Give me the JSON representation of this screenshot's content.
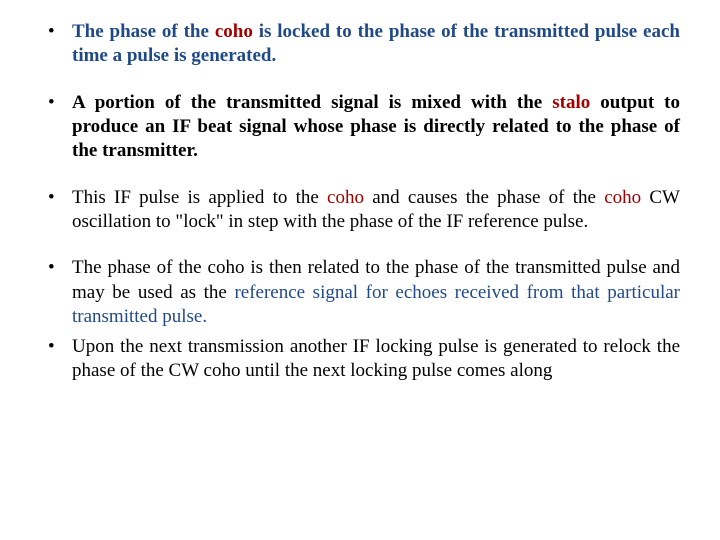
{
  "colors": {
    "blue": "#204a87",
    "red": "#a40000",
    "black": "#000000",
    "background": "#ffffff"
  },
  "typography": {
    "font_family": "Times New Roman",
    "body_fontsize_pt": 14,
    "line_height": 1.28,
    "align": "justify"
  },
  "bullets": [
    {
      "runs": [
        {
          "text": "The phase of the ",
          "color": "blue",
          "bold": true
        },
        {
          "text": "coho",
          "color": "red",
          "bold": true
        },
        {
          "text": " is locked to the phase of the transmitted pulse each time a pulse is generated.",
          "color": "blue",
          "bold": true
        }
      ]
    },
    {
      "runs": [
        {
          "text": "A  portion of the transmitted signal is mixed with the ",
          "color": "black",
          "bold": true
        },
        {
          "text": "stalo",
          "color": "red",
          "bold": true
        },
        {
          "text": " output to produce an IF beat signal whose phase is directly related to the phase of the transmitter.",
          "color": "black",
          "bold": true
        }
      ]
    },
    {
      "runs": [
        {
          "text": "This IF pulse is applied to the ",
          "color": "black",
          "bold": false
        },
        {
          "text": "coho",
          "color": "red",
          "bold": false
        },
        {
          "text": " and causes the phase of the ",
          "color": "black",
          "bold": false
        },
        {
          "text": "coho",
          "color": "red",
          "bold": false
        },
        {
          "text": " CW oscillation to \"lock\" in step with the phase of the IF reference pulse.",
          "color": "black",
          "bold": false
        }
      ]
    },
    {
      "tight": true,
      "runs": [
        {
          "text": "The phase of the coho is then related to the phase of the transmitted pulse and may be used as the ",
          "color": "black",
          "bold": false
        },
        {
          "text": "reference signal for echoes received from that particular transmitted pulse.",
          "color": "blue",
          "bold": false
        }
      ]
    },
    {
      "runs": [
        {
          "text": "Upon the next transmission another IF locking pulse is generated to relock the phase of the CW coho until the next locking pulse comes along",
          "color": "black",
          "bold": false
        }
      ]
    }
  ]
}
